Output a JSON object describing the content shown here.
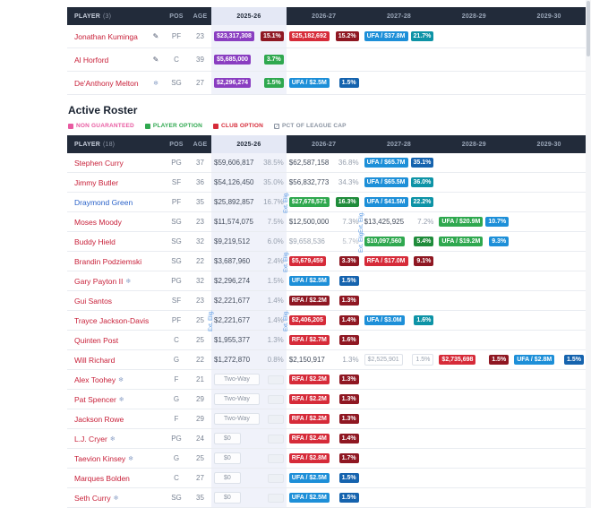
{
  "palette": {
    "header-bg": "#222b3a",
    "link-red": "#c8213a",
    "link-blue": "#2a62c9",
    "hl-col": "#f0f2fa",
    "hl-head": "#e4e8f5",
    "chip-purple": "#8a3ec1",
    "chip-red": "#d62b39",
    "chip-darkred": "#8f1722",
    "chip-green": "#2fa84f",
    "chip-darkgreen": "#1f8c3b",
    "chip-blue": "#1d8fd8",
    "chip-navy": "#1563ae",
    "chip-teal": "#0d93a6",
    "ext-blue": "#4a90e2",
    "legend-pink": "#e85ba1"
  },
  "icons": {
    "note": "✎",
    "snow": "❄"
  },
  "labels": {
    "pos": "POS",
    "age": "AGE",
    "ext": "Ext. Elig."
  },
  "seasons": [
    "2025-26",
    "2026-27",
    "2027-28",
    "2028-29",
    "2029-30"
  ],
  "table_top": {
    "header": {
      "player_label": "PLAYER",
      "player_count": "(3)"
    },
    "rows": [
      {
        "name": "Jonathan Kuminga",
        "icon": "note",
        "pos": "PF",
        "age": "23",
        "cells": [
          {
            "v": "$23,317,308",
            "vs": "purple",
            "p": "15.1%",
            "ps": "darkred"
          },
          {
            "v": "$25,182,692",
            "vs": "red",
            "p": "15.2%",
            "ps": "darkred"
          },
          {
            "v": "UFA / $37.8M",
            "vs": "blue",
            "p": "21.7%",
            "ps": "teal"
          },
          {},
          {}
        ]
      },
      {
        "name": "Al Horford",
        "icon": "note",
        "pos": "C",
        "age": "39",
        "cells": [
          {
            "v": "$5,685,000",
            "vs": "purple",
            "p": "3.7%",
            "ps": "green"
          },
          {},
          {},
          {},
          {}
        ]
      },
      {
        "name": "De'Anthony Melton",
        "icon": "snow",
        "pos": "SG",
        "age": "27",
        "cells": [
          {
            "v": "$2,296,274",
            "vs": "purple",
            "p": "1.5%",
            "ps": "green"
          },
          {
            "v": "UFA / $2.5M",
            "vs": "blue",
            "p": "1.5%",
            "ps": "navy"
          },
          {},
          {},
          {}
        ]
      }
    ]
  },
  "section": {
    "title": "Active Roster",
    "legend": [
      {
        "label": "NON GUARANTEED",
        "color": "#e85ba1"
      },
      {
        "label": "PLAYER OPTION",
        "color": "#2fa84f"
      },
      {
        "label": "CLUB OPTION",
        "color": "#d62b39"
      },
      {
        "label": "PCT OF LEAGUE CAP",
        "icon": "pctbox"
      }
    ]
  },
  "table_main": {
    "header": {
      "player_label": "PLAYER",
      "player_count": "(18)"
    },
    "rows": [
      {
        "name": "Stephen Curry",
        "pos": "PG",
        "age": "37",
        "cells": [
          {
            "v": "$59,606,817",
            "vs": "plain",
            "p": "38.5%",
            "ps": "plain"
          },
          {
            "v": "$62,587,158",
            "vs": "plain",
            "p": "36.8%",
            "ps": "plain"
          },
          {
            "v": "UFA / $65.7M",
            "vs": "blue",
            "p": "35.1%",
            "ps": "navy"
          },
          {},
          {}
        ]
      },
      {
        "name": "Jimmy Butler",
        "pos": "SF",
        "age": "36",
        "cells": [
          {
            "v": "$54,126,450",
            "vs": "plain",
            "p": "35.0%",
            "ps": "plain"
          },
          {
            "v": "$56,832,773",
            "vs": "plain",
            "p": "34.3%",
            "ps": "plain"
          },
          {
            "v": "UFA / $65.5M",
            "vs": "blue",
            "p": "36.0%",
            "ps": "teal"
          },
          {},
          {}
        ]
      },
      {
        "name": "Draymond Green",
        "name_color": "#2a62c9",
        "pos": "PF",
        "age": "35",
        "cells": [
          {
            "v": "$25,892,857",
            "vs": "plain",
            "p": "16.7%",
            "ps": "plain"
          },
          {
            "v": "$27,678,571",
            "vs": "green",
            "p": "16.3%",
            "ps": "darkgreen",
            "ext": true
          },
          {
            "v": "UFA / $41.5M",
            "vs": "blue",
            "p": "22.2%",
            "ps": "teal"
          },
          {},
          {}
        ]
      },
      {
        "name": "Moses Moody",
        "pos": "SG",
        "age": "23",
        "cells": [
          {
            "v": "$11,574,075",
            "vs": "plain",
            "p": "7.5%",
            "ps": "plain"
          },
          {
            "v": "$12,500,000",
            "vs": "plain",
            "p": "7.3%",
            "ps": "plain"
          },
          {
            "v": "$13,425,925",
            "vs": "plain",
            "p": "7.2%",
            "ps": "plain",
            "ext": true
          },
          {
            "v": "UFA / $20.9M",
            "vs": "green",
            "p": "10.7%",
            "ps": "blue"
          },
          {}
        ]
      },
      {
        "name": "Buddy Hield",
        "pos": "SG",
        "age": "32",
        "cells": [
          {
            "v": "$9,219,512",
            "vs": "plain",
            "p": "6.0%",
            "ps": "plain"
          },
          {
            "v": "$9,658,536",
            "vs": "muted",
            "p": "5.7%",
            "ps": "muted"
          },
          {
            "v": "$10,097,560",
            "vs": "green",
            "p": "5.4%",
            "ps": "darkgreen",
            "ext": true
          },
          {
            "v": "UFA / $19.2M",
            "vs": "green",
            "p": "9.3%",
            "ps": "blue"
          },
          {}
        ]
      },
      {
        "name": "Brandin Podziemski",
        "pos": "SG",
        "age": "22",
        "cells": [
          {
            "v": "$3,687,960",
            "vs": "plain",
            "p": "2.4%",
            "ps": "plain"
          },
          {
            "v": "$5,679,459",
            "vs": "red",
            "p": "3.3%",
            "ps": "darkred",
            "ext": true
          },
          {
            "v": "RFA / $17.0M",
            "vs": "red",
            "p": "9.1%",
            "ps": "darkred"
          },
          {},
          {}
        ]
      },
      {
        "name": "Gary Payton II",
        "icon": "snow",
        "pos": "PG",
        "age": "32",
        "cells": [
          {
            "v": "$2,296,274",
            "vs": "plain",
            "p": "1.5%",
            "ps": "plain"
          },
          {
            "v": "UFA / $2.5M",
            "vs": "blue",
            "p": "1.5%",
            "ps": "navy"
          },
          {},
          {},
          {}
        ]
      },
      {
        "name": "Gui Santos",
        "pos": "SF",
        "age": "23",
        "cells": [
          {
            "v": "$2,221,677",
            "vs": "plain",
            "p": "1.4%",
            "ps": "plain"
          },
          {
            "v": "RFA / $2.2M",
            "vs": "darkred",
            "p": "1.3%",
            "ps": "darkred"
          },
          {},
          {},
          {}
        ]
      },
      {
        "name": "Trayce Jackson-Davis",
        "pos": "PF",
        "age": "25",
        "cells": [
          {
            "v": "$2,221,677",
            "vs": "plain",
            "p": "1.4%",
            "ps": "plain",
            "ext": true
          },
          {
            "v": "$2,406,205",
            "vs": "red",
            "p": "1.4%",
            "ps": "darkred",
            "ext": true
          },
          {
            "v": "UFA / $3.0M",
            "vs": "blue",
            "p": "1.6%",
            "ps": "teal"
          },
          {},
          {}
        ]
      },
      {
        "name": "Quinten Post",
        "pos": "C",
        "age": "25",
        "cells": [
          {
            "v": "$1,955,377",
            "vs": "plain",
            "p": "1.3%",
            "ps": "plain"
          },
          {
            "v": "RFA / $2.7M",
            "vs": "red",
            "p": "1.6%",
            "ps": "darkred"
          },
          {},
          {},
          {}
        ]
      },
      {
        "name": "Will Richard",
        "pos": "G",
        "age": "22",
        "cells": [
          {
            "v": "$1,272,870",
            "vs": "plain",
            "p": "0.8%",
            "ps": "plain"
          },
          {
            "v": "$2,150,917",
            "vs": "plain",
            "p": "1.3%",
            "ps": "plain"
          },
          {
            "v": "$2,525,901",
            "vs": "ng",
            "p": "1.5%",
            "ps": "ng"
          },
          {
            "v": "$2,735,698",
            "vs": "red",
            "p": "1.5%",
            "ps": "darkred"
          },
          {
            "v": "UFA / $2.8M",
            "vs": "blue",
            "p": "1.5%",
            "ps": "navy"
          }
        ]
      },
      {
        "name": "Alex Toohey",
        "icon": "snow",
        "pos": "F",
        "age": "21",
        "cells": [
          {
            "v": "Two-Way",
            "vs": "outline",
            "p": "",
            "ps": "blank"
          },
          {
            "v": "RFA / $2.2M",
            "vs": "red",
            "p": "1.3%",
            "ps": "darkred"
          },
          {},
          {},
          {}
        ]
      },
      {
        "name": "Pat Spencer",
        "icon": "snow",
        "pos": "G",
        "age": "29",
        "cells": [
          {
            "v": "Two-Way",
            "vs": "outline",
            "p": "",
            "ps": "blank"
          },
          {
            "v": "RFA / $2.2M",
            "vs": "red",
            "p": "1.3%",
            "ps": "darkred"
          },
          {},
          {},
          {}
        ]
      },
      {
        "name": "Jackson Rowe",
        "pos": "F",
        "age": "29",
        "cells": [
          {
            "v": "Two-Way",
            "vs": "outline",
            "p": "",
            "ps": "blank"
          },
          {
            "v": "RFA / $2.2M",
            "vs": "red",
            "p": "1.3%",
            "ps": "darkred"
          },
          {},
          {},
          {}
        ]
      },
      {
        "name": "L.J. Cryer",
        "icon": "snow",
        "pos": "PG",
        "age": "24",
        "cells": [
          {
            "v": "$0",
            "vs": "outline",
            "p": "",
            "ps": "blank"
          },
          {
            "v": "RFA / $2.4M",
            "vs": "red",
            "p": "1.4%",
            "ps": "darkred"
          },
          {},
          {},
          {}
        ]
      },
      {
        "name": "Taevion Kinsey",
        "icon": "snow",
        "pos": "G",
        "age": "25",
        "cells": [
          {
            "v": "$0",
            "vs": "outline",
            "p": "",
            "ps": "blank"
          },
          {
            "v": "RFA / $2.8M",
            "vs": "red",
            "p": "1.7%",
            "ps": "darkred"
          },
          {},
          {},
          {}
        ]
      },
      {
        "name": "Marques Bolden",
        "pos": "C",
        "age": "27",
        "cells": [
          {
            "v": "$0",
            "vs": "outline",
            "p": "",
            "ps": "blank"
          },
          {
            "v": "UFA / $2.5M",
            "vs": "blue",
            "p": "1.5%",
            "ps": "navy"
          },
          {},
          {},
          {}
        ]
      },
      {
        "name": "Seth Curry",
        "icon": "snow",
        "pos": "SG",
        "age": "35",
        "cells": [
          {
            "v": "$0",
            "vs": "outline",
            "p": "",
            "ps": "blank"
          },
          {
            "v": "UFA / $2.5M",
            "vs": "blue",
            "p": "1.5%",
            "ps": "navy"
          },
          {},
          {},
          {}
        ]
      }
    ]
  }
}
